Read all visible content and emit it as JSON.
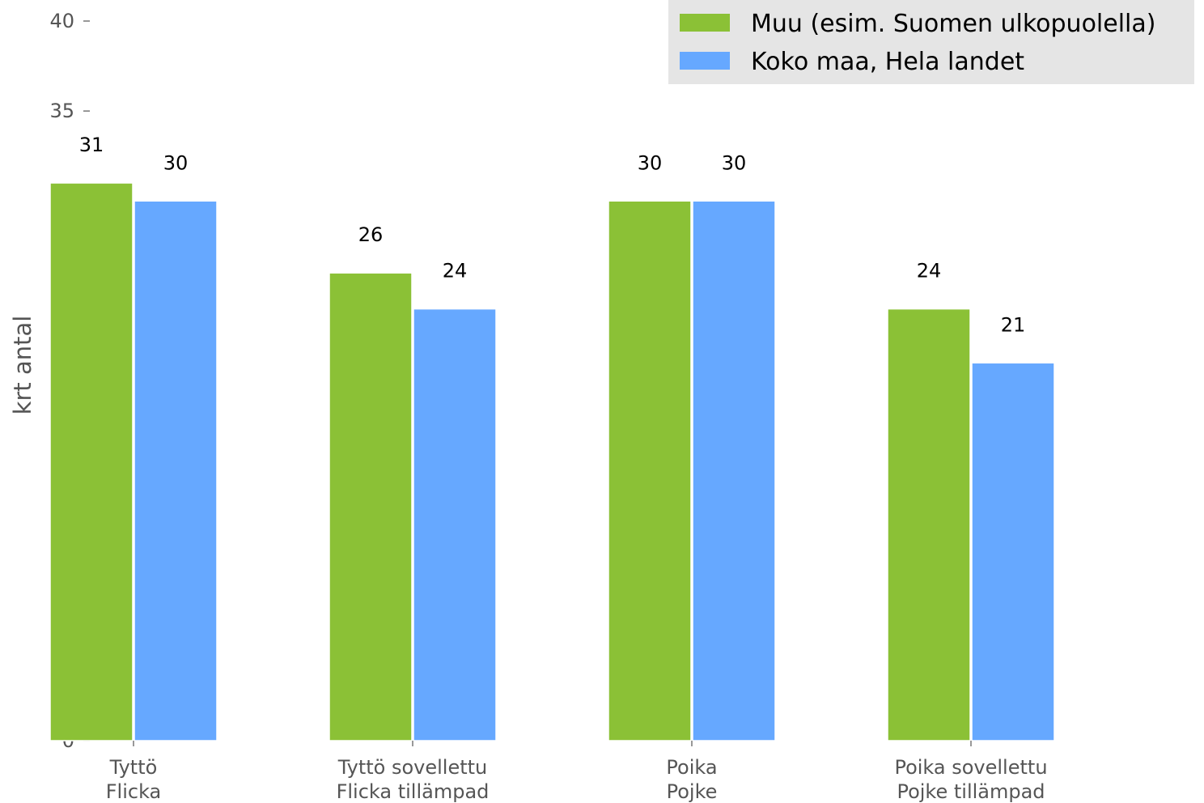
{
  "chart_data": {
    "type": "bar",
    "categories": [
      [
        "Tyttö",
        "Flicka"
      ],
      [
        "Tyttö sovellettu",
        "Flicka tillämpad"
      ],
      [
        "Poika",
        "Pojke"
      ],
      [
        "Poika sovellettu",
        "Pojke tillämpad"
      ]
    ],
    "series": [
      {
        "name": "Muu (esim. Suomen ulkopuolella)",
        "values": [
          31,
          26,
          30,
          24
        ],
        "color": "#8bc136"
      },
      {
        "name": "Koko maa, Hela landet",
        "values": [
          30,
          24,
          30,
          21
        ],
        "color": "#66a8ff"
      }
    ],
    "ylabel": "krt antal",
    "ylim": [
      0,
      40
    ],
    "yticks": [
      0,
      5,
      10,
      15,
      20,
      25,
      30,
      35,
      40
    ],
    "grid": false,
    "legend_position": "top-right",
    "legend_background": "#e5e5e5"
  }
}
